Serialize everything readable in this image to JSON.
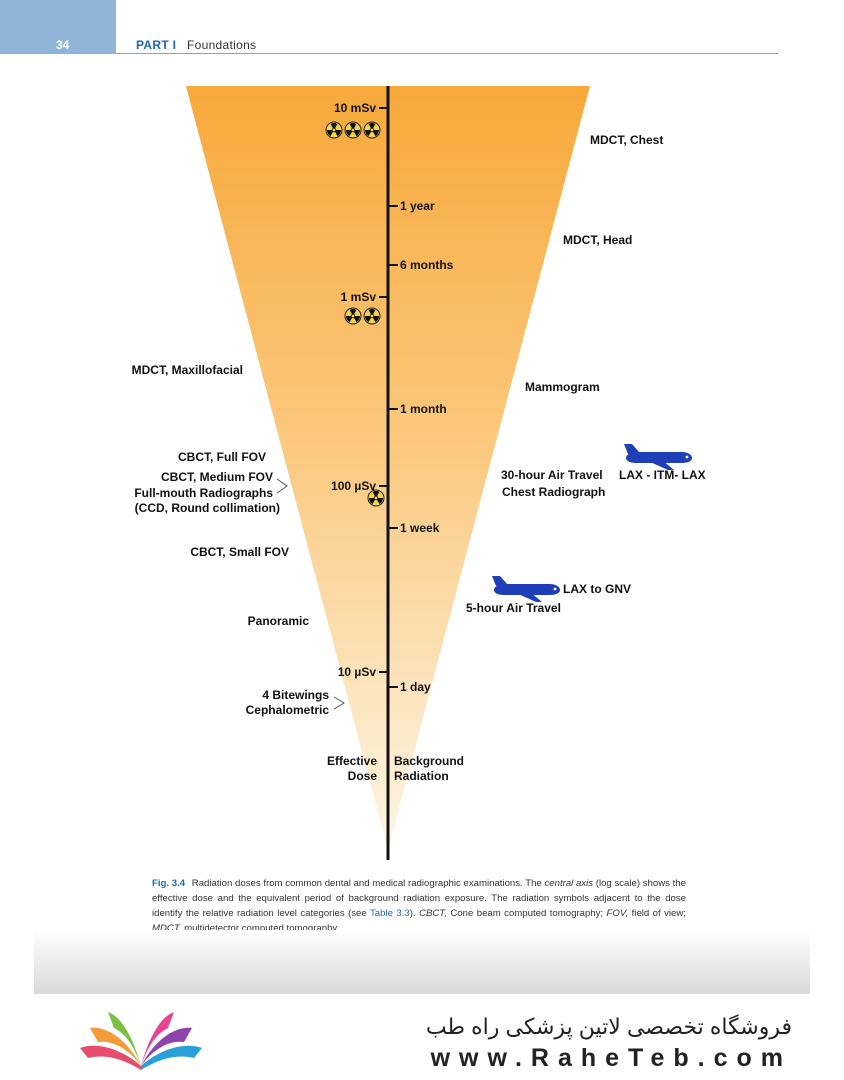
{
  "header": {
    "page_number": "34",
    "part_label": "PART I",
    "part_name": "Foundations"
  },
  "axis": {
    "dose_ticks": [
      {
        "label": "10 mSv",
        "symbols": 3
      },
      {
        "label": "1 mSv",
        "symbols": 2
      },
      {
        "label": "100 µSv",
        "symbols": 1
      },
      {
        "label": "10 µSv",
        "symbols": 0
      }
    ],
    "period_ticks": [
      "1 year",
      "6 months",
      "1 month",
      "1 week",
      "1 day"
    ],
    "left_title": [
      "Effective",
      "Dose"
    ],
    "right_title": [
      "Background",
      "Radiation"
    ]
  },
  "left_labels": {
    "mdct_maxillofacial": "MDCT, Maxillofacial",
    "cbct_full": "CBCT, Full FOV",
    "cbct_medium": "CBCT, Medium FOV",
    "fmx_1": "Full-mouth Radiographs",
    "fmx_2": "(CCD, Round collimation)",
    "cbct_small": "CBCT, Small FOV",
    "panoramic": "Panoramic",
    "bitewings": "4 Bitewings",
    "cephalometric": "Cephalometric"
  },
  "right_labels": {
    "mdct_chest": "MDCT, Chest",
    "mdct_head": "MDCT, Head",
    "mammogram": "Mammogram",
    "air_30": "30-hour Air Travel",
    "chest_radiograph": "Chest Radiograph",
    "route_long": "LAX - ITM- LAX",
    "route_short": "LAX to GNV",
    "air_5": "5-hour Air Travel"
  },
  "caption": {
    "fig_label": "Fig. 3.4",
    "t1": "Radiation doses from common dental and medical radiographic examinations. The",
    "central_axis": "central axis",
    "t2": "(log scale) shows the effective dose and the equivalent period of background radiation exposure. The radiation symbols adjacent to the dose identify the relative radiation level categories (see",
    "table_ref": "Table 3.3",
    "t3": ").",
    "cbct": "CBCT,",
    "t4": "Cone beam computed tomography;",
    "fov": "FOV,",
    "t5": "field of view;",
    "mdct": "MDCT,",
    "t6": "multidetector computed tomography."
  },
  "footer": {
    "store_name": "فروشگاه تخصصی لاتین پزشکی  راه طب",
    "url": "www.RaheTeb.com"
  },
  "colors": {
    "accent_blue": "#1f66b0",
    "cone_top": "#f7a93a",
    "cone_bottom": "#fdf4e2",
    "plane_blue": "#1f3fb8"
  }
}
